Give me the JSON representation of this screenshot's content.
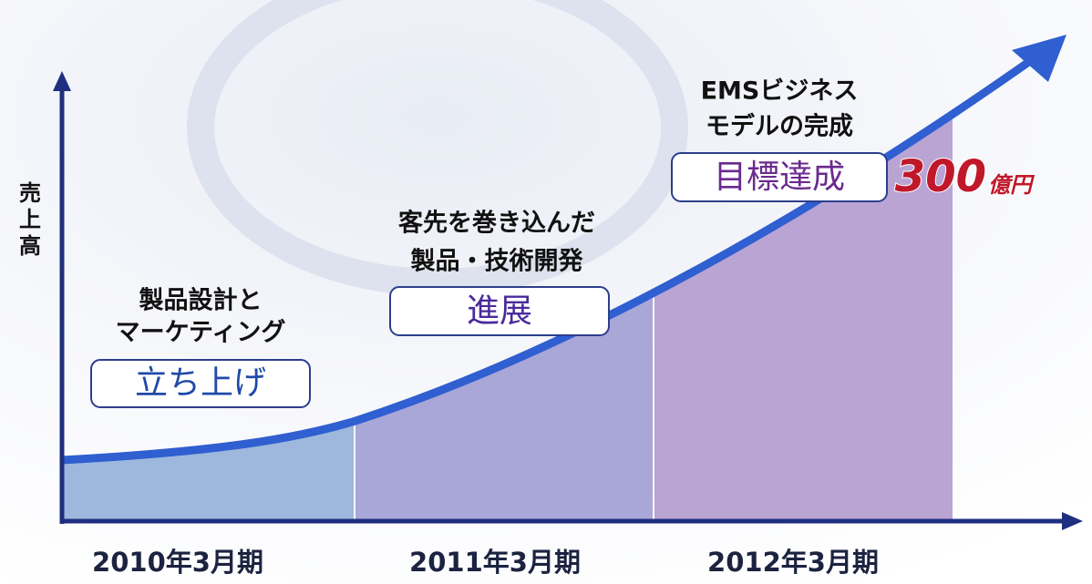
{
  "y_axis_label": "売上高",
  "phases": [
    {
      "lines": [
        "製品設計と",
        "マーケティング"
      ],
      "label": "立ち上げ",
      "period": "2010年3月期"
    },
    {
      "lines": [
        "客先を巻き込んだ",
        "製品・技術開発"
      ],
      "label": "進展",
      "period": "2011年3月期"
    },
    {
      "lines": [
        "EMSビジネス",
        "モデルの完成"
      ],
      "label": "目標達成",
      "period": "2012年3月期"
    }
  ],
  "target": {
    "number": "300",
    "unit": "億円"
  }
}
